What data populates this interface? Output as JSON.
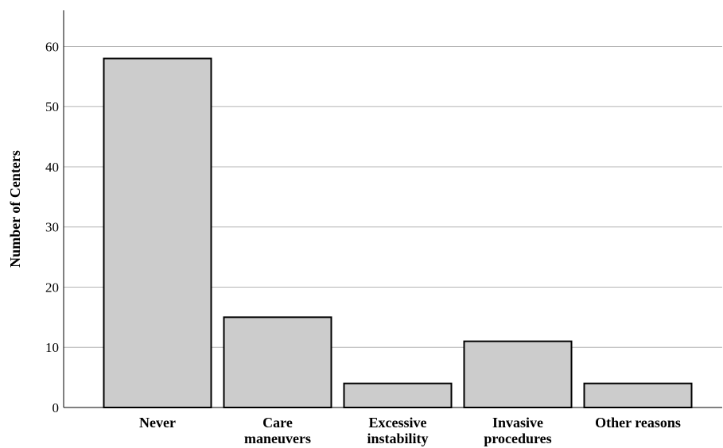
{
  "chart_data": {
    "type": "bar",
    "title": "",
    "xlabel": "",
    "ylabel": "Number of Centers",
    "categories": [
      "Never",
      "Care maneuvers",
      "Excessive instability",
      "Invasive procedures",
      "Other reasons"
    ],
    "category_lines": [
      [
        "Never"
      ],
      [
        "Care",
        "maneuvers"
      ],
      [
        "Excessive",
        "instability"
      ],
      [
        "Invasive",
        "procedures"
      ],
      [
        "Other reasons"
      ]
    ],
    "values": [
      58,
      15,
      4,
      11,
      4
    ],
    "ylim": [
      0,
      66
    ],
    "yticks": [
      0,
      10,
      20,
      30,
      40,
      50,
      60
    ],
    "grid": true,
    "legend": "none",
    "bar_color": "#cccccc",
    "bar_edge_color": "#000000"
  }
}
